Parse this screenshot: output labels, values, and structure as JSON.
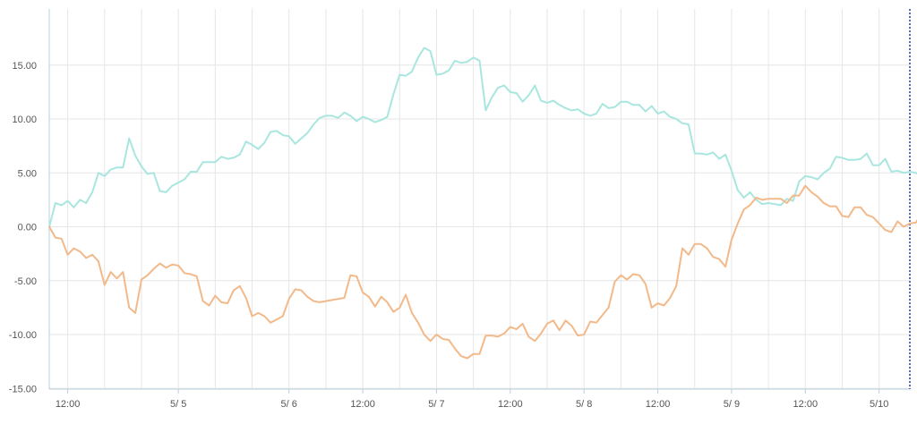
{
  "colors": {
    "series_a": "#a8e6df",
    "series_b": "#f2b98a",
    "grid": "#e6e6e6",
    "axis": "#b8d0dc",
    "cursor": "#1f3fa6",
    "tick_text": "#555555"
  },
  "chart_data": {
    "type": "line",
    "title": "",
    "xlabel": "",
    "ylabel": "",
    "x_range": [
      0,
      140
    ],
    "ylim": [
      -15,
      20
    ],
    "y_ticks": [
      {
        "value": 15,
        "label": "15.00"
      },
      {
        "value": 10,
        "label": "10.00"
      },
      {
        "value": 5,
        "label": "5.00"
      },
      {
        "value": 0,
        "label": "0.00"
      },
      {
        "value": -5,
        "label": "-5.00"
      },
      {
        "value": -10,
        "label": "-10.00"
      },
      {
        "value": -15,
        "label": "-15.00"
      }
    ],
    "x_ticks": [
      {
        "pos": 3,
        "label": "12:00"
      },
      {
        "pos": 21,
        "label": "5/ 5"
      },
      {
        "pos": 39,
        "label": "5/ 6"
      },
      {
        "pos": 51,
        "label": "12:00"
      },
      {
        "pos": 63,
        "label": "5/ 7"
      },
      {
        "pos": 75,
        "label": "12:00"
      },
      {
        "pos": 87,
        "label": "5/ 8"
      },
      {
        "pos": 99,
        "label": "12:00"
      },
      {
        "pos": 111,
        "label": "5/ 9"
      },
      {
        "pos": 123,
        "label": "12:00"
      },
      {
        "pos": 135,
        "label": "5/10"
      }
    ],
    "v_grid": [
      0,
      3,
      9,
      15,
      21,
      27,
      33,
      39,
      45,
      51,
      57,
      63,
      69,
      75,
      81,
      87,
      93,
      99,
      105,
      111,
      117,
      123,
      129,
      135,
      140
    ],
    "cursor_x": 140,
    "series": [
      {
        "name": "",
        "values": [
          0.0,
          2.2,
          2.0,
          2.4,
          1.8,
          2.5,
          2.2,
          3.2,
          5.0,
          4.7,
          5.3,
          5.5,
          5.5,
          8.2,
          6.6,
          5.6,
          4.9,
          5.0,
          3.3,
          3.2,
          3.8,
          4.1,
          4.4,
          5.1,
          5.1,
          6.0,
          6.0,
          6.0,
          6.5,
          6.3,
          6.4,
          6.7,
          7.9,
          7.6,
          7.2,
          7.8,
          8.8,
          8.9,
          8.5,
          8.4,
          7.7,
          8.2,
          8.7,
          9.5,
          10.1,
          10.3,
          10.3,
          10.1,
          10.6,
          10.3,
          9.8,
          10.2,
          10.0,
          9.7,
          9.9,
          10.2,
          12.3,
          14.1,
          14.0,
          14.4,
          15.7,
          16.6,
          16.3,
          14.1,
          14.2,
          14.5,
          15.4,
          15.2,
          15.3,
          15.7,
          15.4,
          10.8,
          12.0,
          12.9,
          13.1,
          12.5,
          12.4,
          11.6,
          12.2,
          13.1,
          11.7,
          11.5,
          11.7,
          11.3,
          11.0,
          10.8,
          10.9,
          10.5,
          10.3,
          10.5,
          11.4,
          11.0,
          11.1,
          11.6,
          11.6,
          11.3,
          11.3,
          10.7,
          11.2,
          10.5,
          10.7,
          10.2,
          10.0,
          9.6,
          9.5,
          6.8,
          6.8,
          6.7,
          6.9,
          6.3,
          6.7,
          5.2,
          3.4,
          2.7,
          3.2,
          2.5,
          2.1,
          2.2,
          2.1,
          2.0,
          2.6,
          2.4,
          4.2,
          4.7,
          4.6,
          4.4,
          5.0,
          5.4,
          6.5,
          6.4,
          6.2,
          6.2,
          6.3,
          6.8,
          5.7,
          5.7,
          6.3,
          5.1,
          5.2,
          5.0,
          5.1,
          5.0,
          4.6
        ]
      },
      {
        "name": "",
        "values": [
          0.0,
          -1.0,
          -1.1,
          -2.6,
          -2.0,
          -2.3,
          -2.9,
          -2.6,
          -3.2,
          -5.4,
          -4.2,
          -4.8,
          -4.2,
          -7.5,
          -8.0,
          -4.9,
          -4.5,
          -3.9,
          -3.4,
          -3.8,
          -3.5,
          -3.6,
          -4.3,
          -4.4,
          -4.6,
          -6.9,
          -7.3,
          -6.4,
          -7.0,
          -7.1,
          -5.9,
          -5.5,
          -6.6,
          -8.3,
          -8.0,
          -8.3,
          -8.9,
          -8.6,
          -8.3,
          -6.7,
          -5.8,
          -5.9,
          -6.5,
          -6.9,
          -7.0,
          -6.9,
          -6.8,
          -6.7,
          -6.6,
          -4.5,
          -4.6,
          -6.1,
          -6.5,
          -7.4,
          -6.5,
          -7.0,
          -7.9,
          -7.5,
          -6.3,
          -8.0,
          -8.9,
          -10.0,
          -10.6,
          -10.0,
          -10.4,
          -10.5,
          -11.3,
          -12.0,
          -12.2,
          -11.8,
          -11.8,
          -10.1,
          -10.1,
          -10.2,
          -9.9,
          -9.3,
          -9.5,
          -9.0,
          -10.2,
          -10.6,
          -9.9,
          -9.0,
          -8.7,
          -9.6,
          -8.7,
          -9.2,
          -10.1,
          -10.0,
          -8.8,
          -8.9,
          -8.2,
          -7.5,
          -5.1,
          -4.5,
          -4.9,
          -4.4,
          -4.5,
          -5.3,
          -7.5,
          -7.1,
          -7.3,
          -6.6,
          -5.5,
          -2.0,
          -2.6,
          -1.6,
          -1.6,
          -2.0,
          -2.8,
          -3.0,
          -3.7,
          -1.2,
          0.3,
          1.6,
          2.0,
          2.7,
          2.5,
          2.6,
          2.6,
          2.6,
          2.2,
          2.9,
          2.9,
          3.8,
          3.2,
          2.8,
          2.2,
          1.9,
          1.9,
          1.0,
          0.9,
          1.8,
          1.8,
          1.1,
          0.9,
          0.3,
          -0.3,
          -0.5,
          0.5,
          0.0,
          0.3,
          0.4,
          1.4
        ]
      }
    ]
  }
}
